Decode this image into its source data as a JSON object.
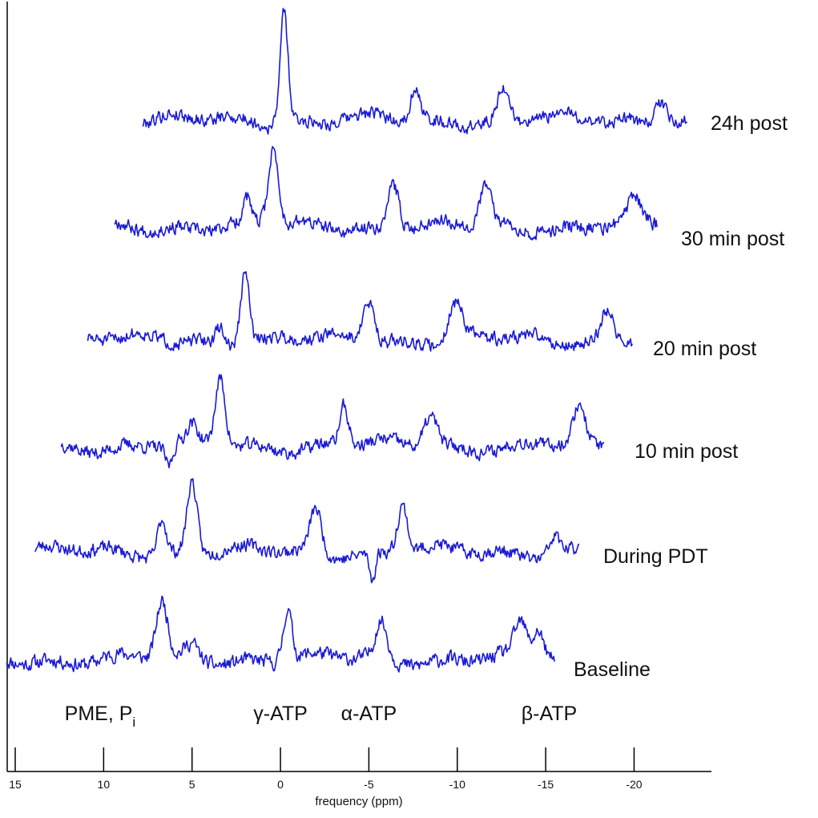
{
  "chart_data": {
    "type": "line",
    "title": "",
    "xlabel": "frequency (ppm)",
    "ylabel": "",
    "xlim": [
      15.5,
      -24.8
    ],
    "x_reversed": true,
    "x_ticks": [
      15,
      10,
      5,
      0,
      -5,
      -10,
      -15,
      -20
    ],
    "x_tick_labels": [
      "15",
      "10",
      "5",
      "0",
      "-5",
      "-10",
      "-15",
      "-20"
    ],
    "grid": false,
    "line_color": "#1a1ad6",
    "series": [
      {
        "name": "Baseline",
        "x_start": 15.5,
        "x_end": -15.5,
        "peaks": [
          [
            6.7,
            70,
            0.45
          ],
          [
            5.0,
            18,
            0.5
          ],
          [
            -0.4,
            65,
            0.35
          ],
          [
            -5.7,
            45,
            0.45
          ],
          [
            -13.6,
            40,
            0.5
          ],
          [
            -14.6,
            35,
            0.4
          ]
        ],
        "noise": 14,
        "seed": 11
      },
      {
        "name": "During PDT",
        "x_start": 13.9,
        "x_end": -16.9,
        "peaks": [
          [
            6.7,
            45,
            0.35
          ],
          [
            5.0,
            90,
            0.4
          ],
          [
            -2.0,
            55,
            0.45
          ],
          [
            -6.9,
            60,
            0.4
          ],
          [
            -5.2,
            -35,
            0.25
          ],
          [
            -15.5,
            22,
            0.4
          ]
        ],
        "noise": 13,
        "seed": 23
      },
      {
        "name": "10 min post",
        "x_start": 12.4,
        "x_end": -18.3,
        "peaks": [
          [
            3.4,
            85,
            0.4
          ],
          [
            5.0,
            20,
            0.4
          ],
          [
            -3.6,
            50,
            0.35
          ],
          [
            -8.5,
            40,
            0.55
          ],
          [
            -16.9,
            45,
            0.45
          ],
          [
            6.3,
            -25,
            0.3
          ]
        ],
        "noise": 13,
        "seed": 37
      },
      {
        "name": "20 min post",
        "x_start": 10.9,
        "x_end": -19.9,
        "peaks": [
          [
            2.0,
            90,
            0.35
          ],
          [
            -5.0,
            50,
            0.5
          ],
          [
            -9.9,
            45,
            0.55
          ],
          [
            -18.5,
            40,
            0.5
          ],
          [
            3.4,
            20,
            0.3
          ]
        ],
        "noise": 13,
        "seed": 51
      },
      {
        "name": "30 min post",
        "x_start": 9.4,
        "x_end": -21.3,
        "peaks": [
          [
            0.4,
            95,
            0.4
          ],
          [
            -6.4,
            55,
            0.45
          ],
          [
            -11.6,
            50,
            0.45
          ],
          [
            -20.0,
            30,
            0.5
          ],
          [
            1.9,
            30,
            0.3
          ]
        ],
        "noise": 13,
        "seed": 67
      },
      {
        "name": "24h post",
        "x_start": 7.8,
        "x_end": -23.0,
        "peaks": [
          [
            -0.2,
            140,
            0.32
          ],
          [
            -7.6,
            40,
            0.35
          ],
          [
            -12.6,
            40,
            0.45
          ],
          [
            -21.5,
            30,
            0.5
          ]
        ],
        "noise": 13,
        "seed": 79
      }
    ],
    "annotations": [
      {
        "text": "PME, P",
        "subscript": "i",
        "x": 10.2
      },
      {
        "text": "γ-ATP",
        "x": 0.0
      },
      {
        "text": "α-ATP",
        "x": -5.0
      },
      {
        "text": "β-ATP",
        "x": -15.2
      }
    ]
  }
}
